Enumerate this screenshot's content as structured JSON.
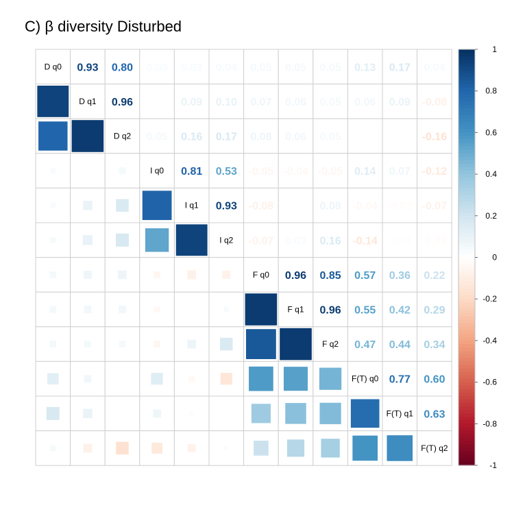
{
  "chart_data": {
    "type": "heatmap",
    "subtype": "correlation-matrix-mixed",
    "title": "C) β diversity Disturbed",
    "variables": [
      "D q0",
      "D q1",
      "D q2",
      "I q0",
      "I q1",
      "I q2",
      "F q0",
      "F q1",
      "F q2",
      "F(T) q0",
      "F(T) q1",
      "F(T) q2"
    ],
    "upper_method": "number",
    "lower_method": "square",
    "diagonal": "variable names",
    "grid": true,
    "values": [
      [
        1,
        0.93,
        0.8,
        0.03,
        0.03,
        0.04,
        0.05,
        0.05,
        0.05,
        0.13,
        0.17,
        0.04
      ],
      [
        0.93,
        1,
        0.96,
        0.01,
        0.09,
        0.1,
        0.07,
        0.06,
        0.05,
        0.06,
        0.09,
        -0.08
      ],
      [
        0.8,
        0.96,
        1,
        0.05,
        0.16,
        0.17,
        0.08,
        0.06,
        0.05,
        0.01,
        0.0,
        -0.16
      ],
      [
        0.03,
        0.01,
        0.05,
        1,
        0.81,
        0.53,
        -0.05,
        -0.04,
        -0.05,
        0.14,
        0.07,
        -0.12
      ],
      [
        0.03,
        0.09,
        0.16,
        0.81,
        1,
        0.93,
        -0.08,
        0.0,
        0.08,
        -0.04,
        -0.02,
        -0.07
      ],
      [
        0.04,
        0.1,
        0.17,
        0.53,
        0.93,
        1,
        -0.07,
        0.03,
        0.16,
        -0.14,
        -0.01,
        -0.02
      ],
      [
        0.05,
        0.07,
        0.08,
        -0.05,
        -0.08,
        -0.07,
        1,
        0.96,
        0.85,
        0.57,
        0.36,
        0.22
      ],
      [
        0.05,
        0.06,
        0.06,
        -0.04,
        0.0,
        0.03,
        0.96,
        1,
        0.96,
        0.55,
        0.42,
        0.29
      ],
      [
        0.05,
        0.05,
        0.05,
        -0.05,
        0.08,
        0.16,
        0.85,
        0.96,
        1,
        0.47,
        0.44,
        0.34
      ],
      [
        0.13,
        0.06,
        0.01,
        0.14,
        -0.04,
        -0.14,
        0.57,
        0.55,
        0.47,
        1,
        0.77,
        0.6
      ],
      [
        0.17,
        0.09,
        0.0,
        0.07,
        -0.02,
        -0.01,
        0.36,
        0.42,
        0.44,
        0.77,
        1,
        0.63
      ],
      [
        0.04,
        -0.08,
        -0.16,
        -0.12,
        -0.07,
        -0.02,
        0.22,
        0.29,
        0.34,
        0.6,
        0.63,
        1
      ]
    ],
    "colorbar": {
      "range": [
        -1,
        1
      ],
      "ticks": [
        "1",
        "0.8",
        "0.6",
        "0.4",
        "0.2",
        "0",
        "-0.2",
        "-0.4",
        "-0.6",
        "-0.8",
        "-1"
      ],
      "colors": [
        "#67001F",
        "#B2182B",
        "#D6604D",
        "#F4A582",
        "#FDDBC7",
        "#FFFFFF",
        "#D1E5F0",
        "#92C5DE",
        "#4393C3",
        "#2166AC",
        "#053061"
      ]
    }
  }
}
